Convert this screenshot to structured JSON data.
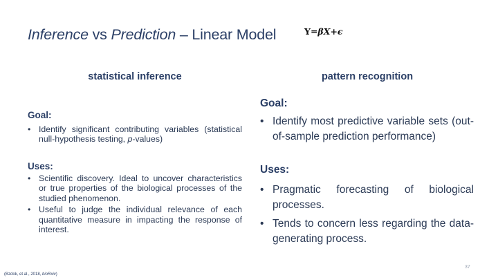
{
  "title": {
    "part1": "Inference",
    "part2": " vs ",
    "part3": "Prediction",
    "part4": " – Linear Model"
  },
  "formula": {
    "y": "Y",
    "eq": "=",
    "beta": "β",
    "x": "X",
    "plus": "+",
    "eps": "ϵ"
  },
  "left": {
    "heading": "statistical inference",
    "goal_label": "Goal:",
    "goal_items": [
      {
        "pre": "Identify significant contributing variables (statistical null-hypothesis testing, ",
        "ital": "p",
        "post": "-values)"
      }
    ],
    "uses_label": "Uses:",
    "uses_items": [
      "Scientific discovery. Ideal to uncover characteristics or true properties of the biological processes of the studied phenomenon.",
      "Useful to judge the individual relevance of each quantitative measure in impacting the response of interest."
    ]
  },
  "right": {
    "heading": "pattern recognition",
    "goal_label": "Goal:",
    "goal_items": [
      "Identify most predictive variable sets (out-of-sample prediction performance)"
    ],
    "uses_label": "Uses:",
    "uses_items": [
      "Pragmatic forecasting of biological processes.",
      "Tends to concern less regarding the data-generating process."
    ]
  },
  "page_number": "37",
  "citation": {
    "text": "(Bzdok, et al., 2018, ",
    "journal": "bioRxiv",
    "close": ")"
  }
}
